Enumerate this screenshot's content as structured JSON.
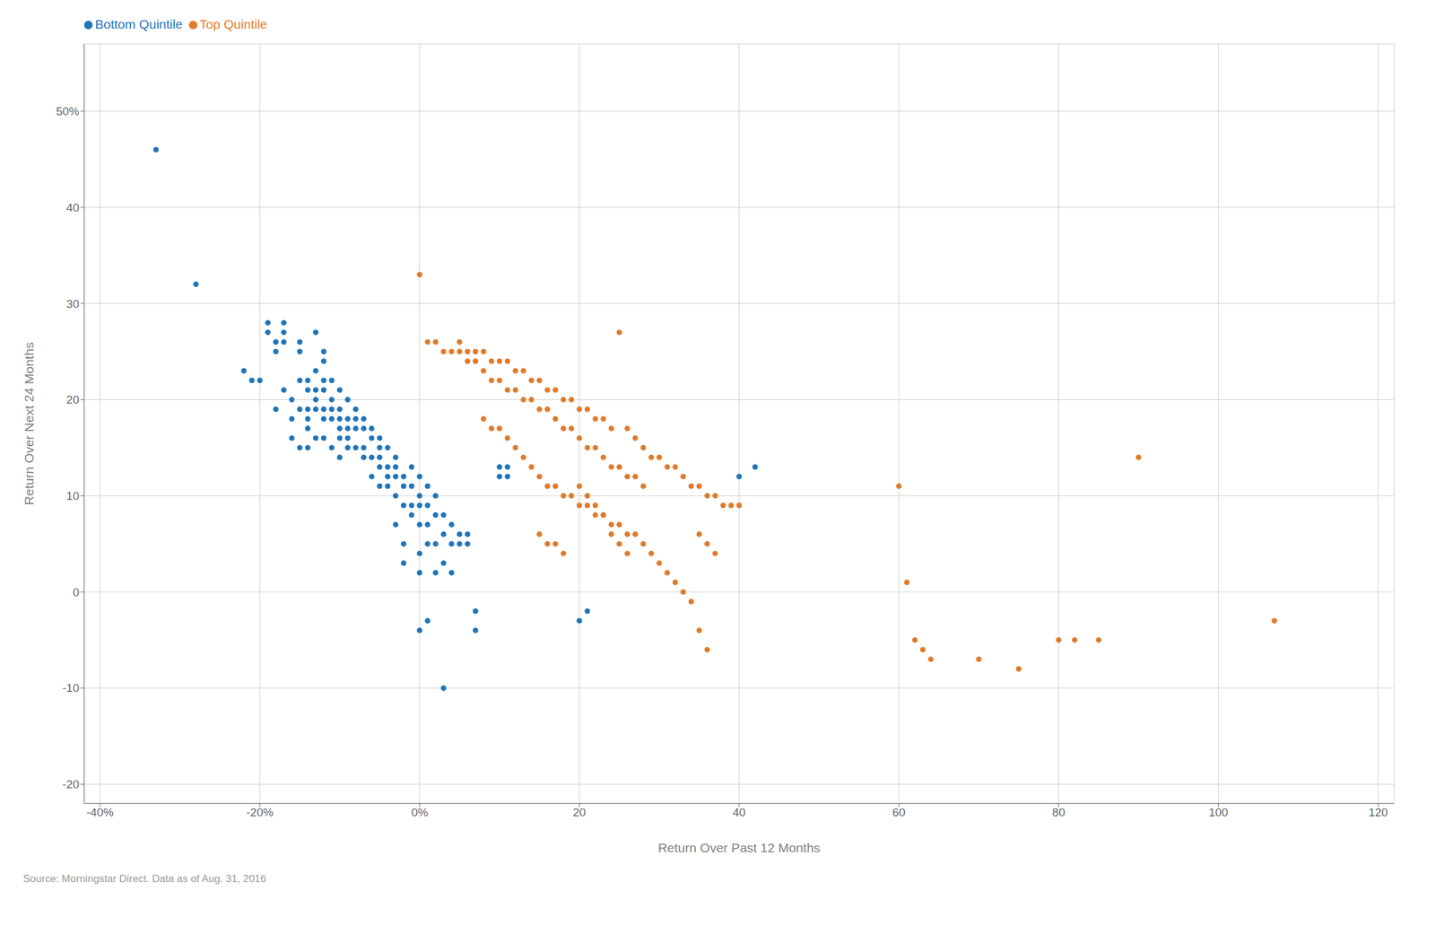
{
  "chart_data": {
    "type": "scatter",
    "xlabel": "Return Over Past 12 Months",
    "ylabel": "Return Over Next 24 Months",
    "annotations": [
      "Source: Morningstar Direct. Data as of Aug. 31, 2016"
    ],
    "xlim": [
      -42,
      122
    ],
    "ylim": [
      -22,
      57
    ],
    "xticks": [
      {
        "value": -40,
        "label": "-40%"
      },
      {
        "value": -20,
        "label": "-20%"
      },
      {
        "value": 0,
        "label": "0%"
      },
      20,
      40,
      60,
      80,
      100,
      120
    ],
    "yticks": [
      -20,
      -10,
      0,
      10,
      20,
      30,
      40,
      {
        "value": 50,
        "label": "50%"
      }
    ],
    "grid": true,
    "legend": "top-left",
    "series": [
      {
        "name": "Bottom Quintile",
        "color": "#2175b8",
        "values": [
          [
            -33,
            46
          ],
          [
            -28,
            32
          ],
          [
            -22,
            23
          ],
          [
            -21,
            22
          ],
          [
            -20,
            22
          ],
          [
            -19,
            27
          ],
          [
            -19,
            28
          ],
          [
            -18,
            25
          ],
          [
            -18,
            26
          ],
          [
            -18,
            19
          ],
          [
            -17,
            28
          ],
          [
            -17,
            27
          ],
          [
            -17,
            26
          ],
          [
            -17,
            21
          ],
          [
            -16,
            20
          ],
          [
            -16,
            18
          ],
          [
            -16,
            16
          ],
          [
            -15,
            26
          ],
          [
            -15,
            25
          ],
          [
            -15,
            22
          ],
          [
            -15,
            19
          ],
          [
            -15,
            15
          ],
          [
            -14,
            22
          ],
          [
            -14,
            21
          ],
          [
            -14,
            19
          ],
          [
            -14,
            18
          ],
          [
            -14,
            17
          ],
          [
            -14,
            15
          ],
          [
            -13,
            27
          ],
          [
            -13,
            23
          ],
          [
            -13,
            21
          ],
          [
            -13,
            20
          ],
          [
            -13,
            19
          ],
          [
            -13,
            16
          ],
          [
            -12,
            25
          ],
          [
            -12,
            24
          ],
          [
            -12,
            22
          ],
          [
            -12,
            21
          ],
          [
            -12,
            19
          ],
          [
            -12,
            18
          ],
          [
            -12,
            16
          ],
          [
            -11,
            22
          ],
          [
            -11,
            20
          ],
          [
            -11,
            19
          ],
          [
            -11,
            18
          ],
          [
            -11,
            15
          ],
          [
            -10,
            21
          ],
          [
            -10,
            19
          ],
          [
            -10,
            18
          ],
          [
            -10,
            17
          ],
          [
            -10,
            16
          ],
          [
            -10,
            14
          ],
          [
            -9,
            20
          ],
          [
            -9,
            18
          ],
          [
            -9,
            17
          ],
          [
            -9,
            16
          ],
          [
            -9,
            15
          ],
          [
            -8,
            19
          ],
          [
            -8,
            18
          ],
          [
            -8,
            17
          ],
          [
            -8,
            15
          ],
          [
            -7,
            18
          ],
          [
            -7,
            17
          ],
          [
            -7,
            15
          ],
          [
            -7,
            14
          ],
          [
            -6,
            17
          ],
          [
            -6,
            16
          ],
          [
            -6,
            14
          ],
          [
            -6,
            12
          ],
          [
            -5,
            16
          ],
          [
            -5,
            15
          ],
          [
            -5,
            14
          ],
          [
            -5,
            13
          ],
          [
            -5,
            11
          ],
          [
            -4,
            15
          ],
          [
            -4,
            13
          ],
          [
            -4,
            12
          ],
          [
            -4,
            11
          ],
          [
            -3,
            14
          ],
          [
            -3,
            13
          ],
          [
            -3,
            12
          ],
          [
            -3,
            10
          ],
          [
            -3,
            7
          ],
          [
            -2,
            12
          ],
          [
            -2,
            11
          ],
          [
            -2,
            9
          ],
          [
            -2,
            5
          ],
          [
            -2,
            3
          ],
          [
            -1,
            13
          ],
          [
            -1,
            11
          ],
          [
            -1,
            9
          ],
          [
            -1,
            8
          ],
          [
            0,
            12
          ],
          [
            0,
            10
          ],
          [
            0,
            9
          ],
          [
            0,
            7
          ],
          [
            0,
            4
          ],
          [
            0,
            2
          ],
          [
            1,
            11
          ],
          [
            1,
            9
          ],
          [
            1,
            7
          ],
          [
            1,
            5
          ],
          [
            2,
            10
          ],
          [
            2,
            8
          ],
          [
            2,
            5
          ],
          [
            2,
            2
          ],
          [
            3,
            8
          ],
          [
            3,
            6
          ],
          [
            3,
            3
          ],
          [
            4,
            7
          ],
          [
            4,
            5
          ],
          [
            4,
            2
          ],
          [
            5,
            6
          ],
          [
            5,
            5
          ],
          [
            6,
            6
          ],
          [
            6,
            5
          ],
          [
            7,
            -4
          ],
          [
            7,
            -2
          ],
          [
            3,
            -10
          ],
          [
            10,
            13
          ],
          [
            10,
            12
          ],
          [
            11,
            13
          ],
          [
            11,
            12
          ],
          [
            40,
            12
          ],
          [
            42,
            13
          ],
          [
            20,
            -3
          ],
          [
            21,
            -2
          ],
          [
            0,
            -4
          ],
          [
            1,
            -3
          ]
        ]
      },
      {
        "name": "Top Quintile",
        "color": "#e07b2b",
        "values": [
          [
            0,
            33
          ],
          [
            1,
            26
          ],
          [
            2,
            26
          ],
          [
            3,
            25
          ],
          [
            4,
            25
          ],
          [
            5,
            26
          ],
          [
            6,
            25
          ],
          [
            7,
            25
          ],
          [
            8,
            25
          ],
          [
            9,
            24
          ],
          [
            10,
            24
          ],
          [
            11,
            24
          ],
          [
            12,
            23
          ],
          [
            13,
            23
          ],
          [
            14,
            22
          ],
          [
            15,
            22
          ],
          [
            16,
            21
          ],
          [
            17,
            21
          ],
          [
            18,
            20
          ],
          [
            19,
            20
          ],
          [
            20,
            19
          ],
          [
            21,
            19
          ],
          [
            22,
            18
          ],
          [
            23,
            18
          ],
          [
            24,
            17
          ],
          [
            25,
            27
          ],
          [
            26,
            17
          ],
          [
            27,
            16
          ],
          [
            28,
            15
          ],
          [
            5,
            25
          ],
          [
            6,
            24
          ],
          [
            7,
            24
          ],
          [
            8,
            23
          ],
          [
            9,
            22
          ],
          [
            10,
            22
          ],
          [
            11,
            21
          ],
          [
            12,
            21
          ],
          [
            13,
            20
          ],
          [
            14,
            20
          ],
          [
            15,
            19
          ],
          [
            16,
            19
          ],
          [
            17,
            18
          ],
          [
            18,
            17
          ],
          [
            19,
            17
          ],
          [
            20,
            16
          ],
          [
            21,
            15
          ],
          [
            22,
            15
          ],
          [
            23,
            14
          ],
          [
            24,
            13
          ],
          [
            25,
            13
          ],
          [
            26,
            12
          ],
          [
            27,
            12
          ],
          [
            28,
            11
          ],
          [
            8,
            18
          ],
          [
            9,
            17
          ],
          [
            10,
            17
          ],
          [
            11,
            16
          ],
          [
            12,
            15
          ],
          [
            13,
            14
          ],
          [
            14,
            13
          ],
          [
            15,
            12
          ],
          [
            16,
            11
          ],
          [
            17,
            11
          ],
          [
            18,
            10
          ],
          [
            19,
            10
          ],
          [
            20,
            9
          ],
          [
            21,
            9
          ],
          [
            22,
            8
          ],
          [
            23,
            8
          ],
          [
            24,
            7
          ],
          [
            25,
            7
          ],
          [
            26,
            6
          ],
          [
            27,
            6
          ],
          [
            28,
            5
          ],
          [
            29,
            14
          ],
          [
            30,
            14
          ],
          [
            31,
            13
          ],
          [
            32,
            13
          ],
          [
            33,
            12
          ],
          [
            34,
            11
          ],
          [
            35,
            11
          ],
          [
            36,
            10
          ],
          [
            37,
            10
          ],
          [
            38,
            9
          ],
          [
            39,
            9
          ],
          [
            40,
            9
          ],
          [
            29,
            4
          ],
          [
            30,
            3
          ],
          [
            31,
            2
          ],
          [
            32,
            1
          ],
          [
            33,
            0
          ],
          [
            34,
            -1
          ],
          [
            35,
            6
          ],
          [
            36,
            5
          ],
          [
            37,
            4
          ],
          [
            15,
            6
          ],
          [
            16,
            5
          ],
          [
            17,
            5
          ],
          [
            18,
            4
          ],
          [
            20,
            11
          ],
          [
            21,
            10
          ],
          [
            22,
            9
          ],
          [
            23,
            8
          ],
          [
            24,
            6
          ],
          [
            25,
            5
          ],
          [
            26,
            4
          ],
          [
            35,
            -4
          ],
          [
            36,
            -6
          ],
          [
            60,
            11
          ],
          [
            61,
            1
          ],
          [
            62,
            -5
          ],
          [
            63,
            -6
          ],
          [
            64,
            -7
          ],
          [
            70,
            -7
          ],
          [
            75,
            -8
          ],
          [
            80,
            -5
          ],
          [
            82,
            -5
          ],
          [
            85,
            -5
          ],
          [
            90,
            14
          ],
          [
            107,
            -3
          ]
        ]
      }
    ]
  }
}
